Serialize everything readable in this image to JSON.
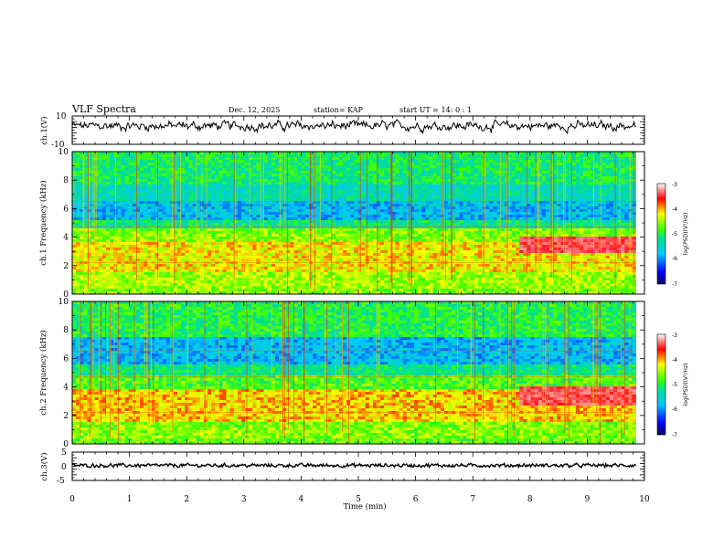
{
  "header": {
    "title": "VLF Spectra",
    "date": "Dec. 12, 2025",
    "station": "station= KAP",
    "start": "start UT =  14: 0  : 1"
  },
  "chart_data": [
    {
      "type": "line",
      "panel": "ch1-waveform",
      "ylabel": "ch.1(V)",
      "ylim": [
        -10,
        10
      ],
      "yticks": [
        "10",
        "-10"
      ],
      "xlim": [
        0,
        10
      ],
      "data_end_min": 9.85,
      "series": [
        {
          "name": "ch.1 amplitude",
          "mean": 3,
          "noise": 2.5
        }
      ]
    },
    {
      "type": "heatmap",
      "panel": "ch1-spectrogram",
      "ylabel": "ch.1  Frequency (kHz)",
      "ylim": [
        0,
        10
      ],
      "yticks": [
        "0",
        "2",
        "4",
        "6",
        "8",
        "10"
      ],
      "xlim": [
        0,
        10
      ],
      "data_end_min": 9.85,
      "colorbar": {
        "label": "log(PSD)(V²/Hz)",
        "range": [
          -7,
          -3
        ],
        "ticks": [
          "-3",
          "-4",
          "-5",
          "-6",
          "-7"
        ]
      },
      "bands_khz_level": [
        [
          0,
          0.3,
          -4.6
        ],
        [
          0.3,
          1.6,
          -4.5
        ],
        [
          1.6,
          3.6,
          -4.2
        ],
        [
          3.6,
          4.6,
          -4.6
        ],
        [
          4.6,
          5.2,
          -5.2
        ],
        [
          5.2,
          6.6,
          -5.8
        ],
        [
          6.6,
          7.6,
          -5.4
        ],
        [
          7.6,
          10,
          -5.1
        ]
      ],
      "event": {
        "t_start_min": 7.8,
        "f_low_khz": 2.9,
        "f_high_khz": 4.1,
        "level": -3.4
      }
    },
    {
      "type": "heatmap",
      "panel": "ch2-spectrogram",
      "ylabel": "ch.2  Frequency (kHz)",
      "ylim": [
        0,
        10
      ],
      "yticks": [
        "0",
        "2",
        "4",
        "6",
        "8",
        "10"
      ],
      "xlim": [
        0,
        10
      ],
      "data_end_min": 9.85,
      "colorbar": {
        "label": "log(PSD)(V²/Hz)",
        "range": [
          -7,
          -3
        ],
        "ticks": [
          "-3",
          "-4",
          "-5",
          "-6",
          "-7"
        ]
      },
      "bands_khz_level": [
        [
          0,
          0.3,
          -4.7
        ],
        [
          0.3,
          1.6,
          -4.6
        ],
        [
          1.6,
          3.8,
          -4.1
        ],
        [
          3.8,
          4.8,
          -4.8
        ],
        [
          4.8,
          5.5,
          -5.2
        ],
        [
          5.5,
          7.5,
          -5.8
        ],
        [
          7.5,
          10,
          -5.0
        ]
      ],
      "event": {
        "t_start_min": 7.8,
        "f_low_khz": 2.6,
        "f_high_khz": 4.0,
        "level": -3.4
      }
    },
    {
      "type": "line",
      "panel": "ch3-waveform",
      "ylabel": "ch.3(V)",
      "ylim": [
        -5,
        5
      ],
      "yticks": [
        "5",
        "0",
        "-5"
      ],
      "xlim": [
        0,
        10
      ],
      "data_end_min": 9.85,
      "xlabel": "Time  (min)",
      "xticks": [
        "0",
        "1",
        "2",
        "3",
        "4",
        "5",
        "6",
        "7",
        "8",
        "9",
        "10"
      ],
      "series": [
        {
          "name": "ch.3 amplitude",
          "mean": 0.3,
          "noise": 0.35
        }
      ]
    }
  ]
}
